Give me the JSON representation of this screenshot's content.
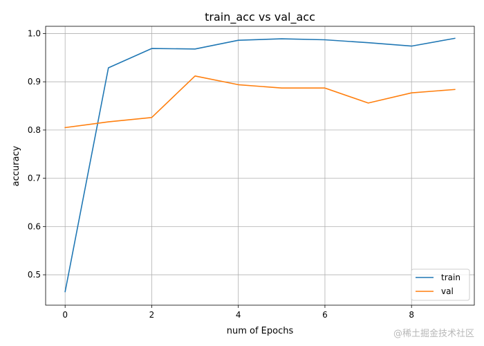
{
  "watermark": "@稀土掘金技术社区",
  "chart_data": {
    "type": "line",
    "title": "train_acc vs val_acc",
    "xlabel": "num of Epochs",
    "ylabel": "accuracy",
    "x": [
      0,
      1,
      2,
      3,
      4,
      5,
      6,
      7,
      8,
      9
    ],
    "xlim": [
      -0.45,
      9.45
    ],
    "ylim": [
      0.437,
      1.015
    ],
    "xticks": [
      0,
      2,
      4,
      6,
      8
    ],
    "yticks": [
      0.5,
      0.6,
      0.7,
      0.8,
      0.9,
      1.0
    ],
    "ytick_labels": [
      "0.5",
      "0.6",
      "0.7",
      "0.8",
      "0.9",
      "1.0"
    ],
    "grid": true,
    "legend_position": "bottom-right",
    "series": [
      {
        "name": "train",
        "color": "#1f77b4",
        "values": [
          0.465,
          0.929,
          0.969,
          0.968,
          0.986,
          0.989,
          0.987,
          0.981,
          0.974,
          0.99
        ]
      },
      {
        "name": "val",
        "color": "#ff7f0e",
        "values": [
          0.805,
          0.817,
          0.826,
          0.912,
          0.894,
          0.887,
          0.887,
          0.856,
          0.877,
          0.884
        ]
      }
    ]
  }
}
